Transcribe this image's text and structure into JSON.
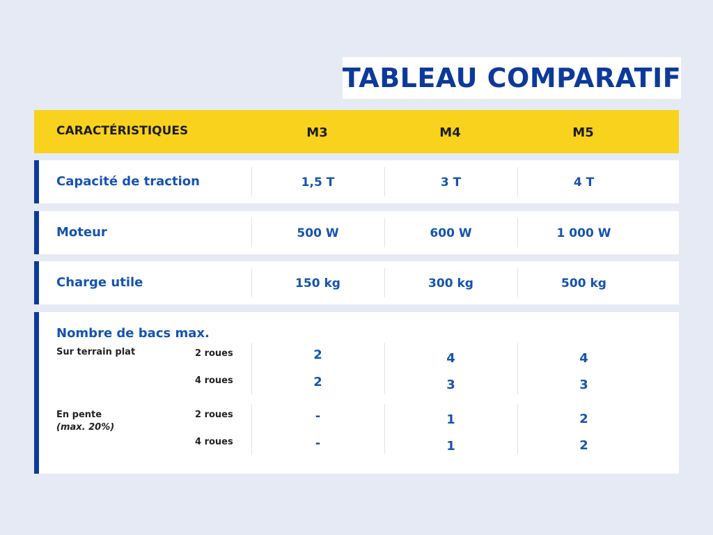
{
  "title": "TABLEAU COMPARATIF",
  "header": {
    "label": "CARACTÉRISTIQUES",
    "models": [
      "M3",
      "M4",
      "M5"
    ]
  },
  "rows": [
    {
      "label": "Capacité de traction",
      "values": [
        "1,5 T",
        "3 T",
        "4 T"
      ]
    },
    {
      "label": "Moteur",
      "values": [
        "500 W",
        "600 W",
        "1 000 W"
      ]
    },
    {
      "label": "Charge utile",
      "values": [
        "150 kg",
        "300 kg",
        "500 kg"
      ]
    }
  ],
  "bacs": {
    "label": "Nombre de bacs max.",
    "flat": {
      "label": "Sur terrain plat",
      "two_wheels": {
        "label": "2 roues",
        "values": [
          "2",
          "4",
          "4"
        ]
      },
      "four_wheels": {
        "label": "4 roues",
        "values": [
          "2",
          "3",
          "3"
        ]
      }
    },
    "slope": {
      "label": "En pente",
      "note": "(max. 20%)",
      "two_wheels": {
        "label": "2 roues",
        "values": [
          "-",
          "1",
          "2"
        ]
      },
      "four_wheels": {
        "label": "4 roues",
        "values": [
          "-",
          "1",
          "2"
        ]
      }
    }
  },
  "colors": {
    "background": "#e6eaf4",
    "header": "#f8d21c",
    "accent": "#0d3a9a",
    "text_blue": "#1553b3"
  }
}
